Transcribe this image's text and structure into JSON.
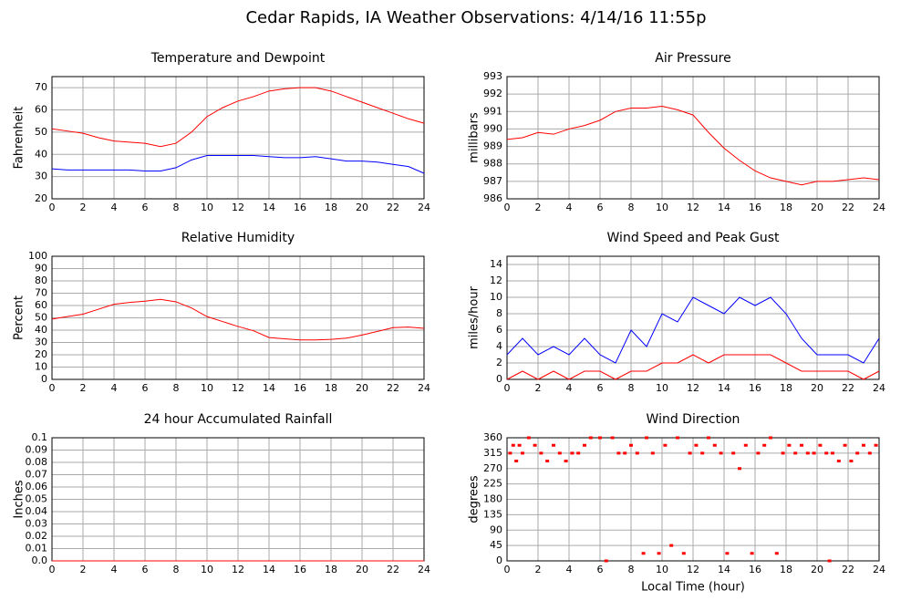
{
  "title": "Cedar Rapids, IA Weather Observations: 4/14/16 11:55p",
  "chart_data": [
    {
      "type": "line",
      "title": "Temperature and Dewpoint",
      "ylabel": "Fahrenheit",
      "x": [
        0,
        1,
        2,
        3,
        4,
        5,
        6,
        7,
        8,
        9,
        10,
        11,
        12,
        13,
        14,
        15,
        16,
        17,
        18,
        19,
        20,
        21,
        22,
        23,
        24
      ],
      "series": [
        {
          "color": "#ff0000",
          "values": [
            51.5,
            50.5,
            49.5,
            47.5,
            46,
            45.5,
            45,
            43.5,
            45,
            50,
            57,
            61,
            64,
            66,
            68.5,
            69.5,
            70,
            70,
            68.5,
            66,
            63.5,
            61,
            58.5,
            56,
            54
          ]
        },
        {
          "color": "#0000ff",
          "values": [
            33.5,
            33,
            33,
            33,
            33,
            33,
            32.5,
            32.5,
            34,
            37.5,
            39.5,
            39.5,
            39.5,
            39.5,
            39,
            38.5,
            38.5,
            39,
            38,
            37,
            37,
            36.5,
            35.5,
            34.5,
            31.5
          ]
        }
      ],
      "xlim": [
        0,
        24
      ],
      "xticks": [
        0,
        2,
        4,
        6,
        8,
        10,
        12,
        14,
        16,
        18,
        20,
        22,
        24
      ],
      "ylim": [
        20,
        75
      ],
      "yticks": [
        20,
        30,
        40,
        50,
        60,
        70
      ],
      "grid": true
    },
    {
      "type": "line",
      "title": "Air Pressure",
      "ylabel": "millibars",
      "x": [
        0,
        1,
        2,
        3,
        4,
        5,
        6,
        7,
        8,
        9,
        10,
        11,
        12,
        13,
        14,
        15,
        16,
        17,
        18,
        19,
        20,
        21,
        22,
        23,
        24
      ],
      "series": [
        {
          "color": "#ff0000",
          "values": [
            989.4,
            989.5,
            989.8,
            989.7,
            990.0,
            990.2,
            990.5,
            991.0,
            991.2,
            991.2,
            991.3,
            991.1,
            990.8,
            989.8,
            988.9,
            988.2,
            987.6,
            987.2,
            987.0,
            986.8,
            987.0,
            987.0,
            987.1,
            987.2,
            987.1
          ]
        }
      ],
      "xlim": [
        0,
        24
      ],
      "xticks": [
        0,
        2,
        4,
        6,
        8,
        10,
        12,
        14,
        16,
        18,
        20,
        22,
        24
      ],
      "ylim": [
        986,
        993
      ],
      "yticks": [
        986,
        987,
        988,
        989,
        990,
        991,
        992,
        993
      ],
      "grid": true
    },
    {
      "type": "line",
      "title": "Relative Humidity",
      "ylabel": "Percent",
      "x": [
        0,
        1,
        2,
        3,
        4,
        5,
        6,
        7,
        8,
        9,
        10,
        11,
        12,
        13,
        14,
        15,
        16,
        17,
        18,
        19,
        20,
        21,
        22,
        23,
        24
      ],
      "series": [
        {
          "color": "#ff0000",
          "values": [
            49,
            51,
            53,
            57,
            61,
            62.5,
            63.5,
            65,
            63,
            58,
            51,
            47,
            43,
            39.5,
            34,
            33,
            32,
            32,
            32.5,
            33.5,
            36,
            39,
            42,
            42.5,
            41.5
          ]
        }
      ],
      "xlim": [
        0,
        24
      ],
      "xticks": [
        0,
        2,
        4,
        6,
        8,
        10,
        12,
        14,
        16,
        18,
        20,
        22,
        24
      ],
      "ylim": [
        0,
        100
      ],
      "yticks": [
        0,
        10,
        20,
        30,
        40,
        50,
        60,
        70,
        80,
        90,
        100
      ],
      "grid": true
    },
    {
      "type": "line",
      "title": "Wind Speed and Peak Gust",
      "ylabel": "miles/hour",
      "x": [
        0,
        1,
        2,
        3,
        4,
        5,
        6,
        7,
        8,
        9,
        10,
        11,
        12,
        13,
        14,
        15,
        16,
        17,
        18,
        19,
        20,
        21,
        22,
        23,
        24
      ],
      "series": [
        {
          "color": "#0000ff",
          "values": [
            3,
            5,
            3,
            4,
            3,
            5,
            3,
            2,
            6,
            4,
            8,
            7,
            10,
            9,
            8,
            10,
            9,
            10,
            8,
            5,
            3,
            3,
            3,
            2,
            5
          ]
        },
        {
          "color": "#ff0000",
          "values": [
            0,
            1,
            0,
            1,
            0,
            1,
            1,
            0,
            1,
            1,
            2,
            2,
            3,
            2,
            3,
            3,
            3,
            3,
            2,
            1,
            1,
            1,
            1,
            0,
            1
          ]
        }
      ],
      "xlim": [
        0,
        24
      ],
      "xticks": [
        0,
        2,
        4,
        6,
        8,
        10,
        12,
        14,
        16,
        18,
        20,
        22,
        24
      ],
      "ylim": [
        0,
        15
      ],
      "yticks": [
        0,
        2,
        4,
        6,
        8,
        10,
        12,
        14
      ],
      "grid": true
    },
    {
      "type": "line",
      "title": "24 hour Accumulated Rainfall",
      "ylabel": "Inches",
      "x": [
        0,
        6,
        12,
        18,
        24
      ],
      "series": [
        {
          "color": "#ff0000",
          "values": [
            0,
            0,
            0,
            0,
            0
          ]
        }
      ],
      "xlim": [
        0,
        24
      ],
      "xticks": [
        0,
        2,
        4,
        6,
        8,
        10,
        12,
        14,
        16,
        18,
        20,
        22,
        24
      ],
      "ylim": [
        0,
        0.1
      ],
      "yticks": [
        {
          "value": 0,
          "label": "0.0"
        },
        0.01,
        0.02,
        0.03,
        0.04,
        0.05,
        0.06,
        0.07,
        0.08,
        0.09,
        0.1
      ],
      "grid": true
    },
    {
      "type": "scatter",
      "title": "Wind Direction",
      "ylabel": "degrees",
      "xlabel": "Local Time (hour)",
      "x": [
        0.2,
        0.4,
        0.6,
        0.8,
        1.0,
        1.4,
        1.8,
        2.2,
        2.6,
        3.0,
        3.4,
        3.8,
        4.2,
        4.6,
        5.0,
        5.4,
        6.0,
        6.4,
        6.8,
        7.2,
        7.6,
        8.0,
        8.4,
        8.8,
        9.0,
        9.4,
        9.8,
        10.2,
        10.6,
        11.0,
        11.4,
        11.8,
        12.2,
        12.6,
        13.0,
        13.4,
        13.8,
        14.2,
        14.6,
        15.0,
        15.4,
        15.8,
        16.2,
        16.6,
        17.0,
        17.4,
        17.8,
        18.2,
        18.6,
        19.0,
        19.4,
        19.8,
        20.2,
        20.6,
        20.8,
        21.0,
        21.4,
        21.8,
        22.2,
        22.6,
        23.0,
        23.4,
        23.8
      ],
      "series": [
        {
          "color": "#ff0000",
          "values": [
            315,
            338,
            292,
            338,
            315,
            360,
            338,
            315,
            292,
            338,
            315,
            292,
            315,
            315,
            338,
            360,
            360,
            0,
            360,
            315,
            315,
            338,
            315,
            22,
            360,
            315,
            22,
            338,
            45,
            360,
            22,
            315,
            338,
            315,
            360,
            338,
            315,
            22,
            315,
            270,
            338,
            22,
            315,
            338,
            360,
            22,
            315,
            338,
            315,
            338,
            315,
            315,
            338,
            315,
            0,
            315,
            292,
            338,
            292,
            315,
            338,
            315,
            338
          ]
        }
      ],
      "xlim": [
        0,
        24
      ],
      "xticks": [
        0,
        2,
        4,
        6,
        8,
        10,
        12,
        14,
        16,
        18,
        20,
        22,
        24
      ],
      "ylim": [
        0,
        360
      ],
      "yticks": [
        0,
        45,
        90,
        135,
        180,
        225,
        270,
        315,
        360
      ],
      "grid": true
    }
  ]
}
